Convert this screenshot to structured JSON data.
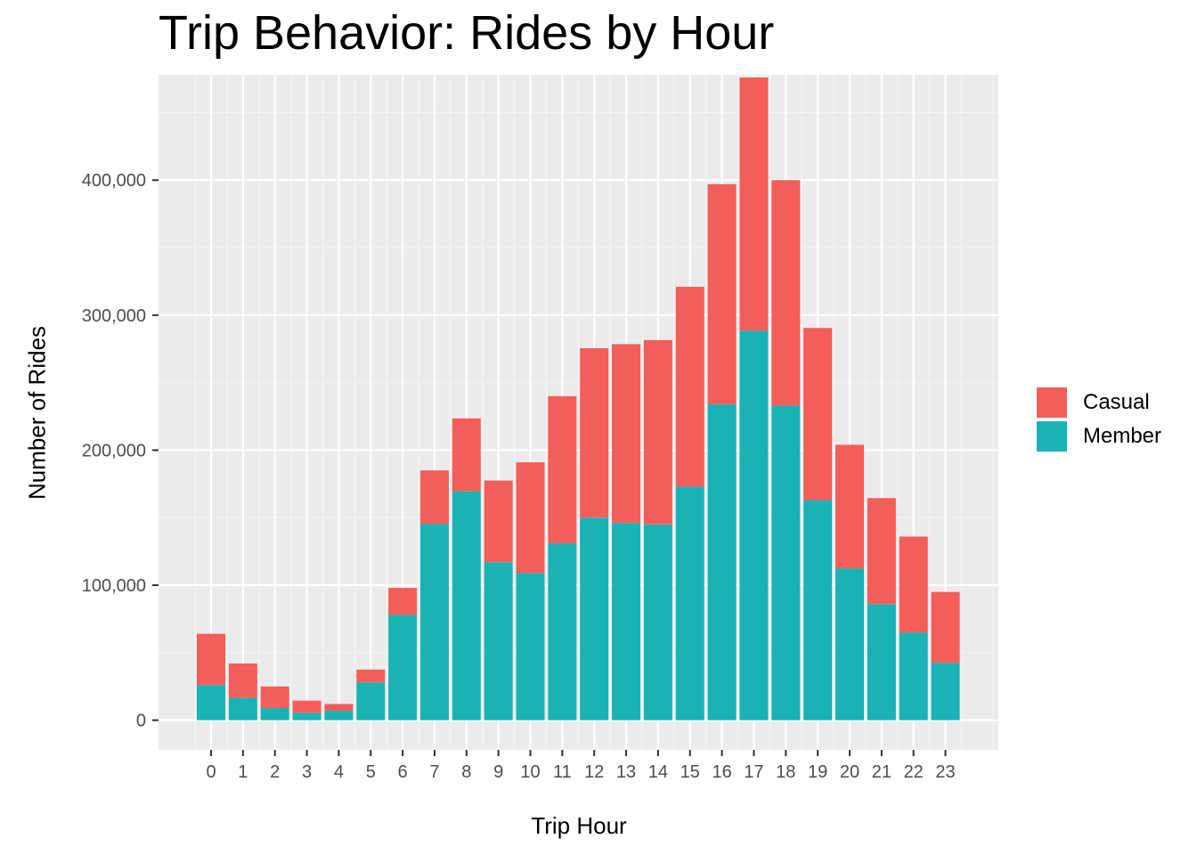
{
  "chart_data": {
    "type": "bar",
    "stacked": true,
    "title": "Trip Behavior: Rides by Hour",
    "xlabel": "Trip Hour",
    "ylabel": "Number of Rides",
    "categories": [
      "0",
      "1",
      "2",
      "3",
      "4",
      "5",
      "6",
      "7",
      "8",
      "9",
      "10",
      "11",
      "12",
      "13",
      "14",
      "15",
      "16",
      "17",
      "18",
      "19",
      "20",
      "21",
      "22",
      "23"
    ],
    "series": [
      {
        "name": "Member",
        "color": "#19b3b6",
        "values": [
          26000,
          16500,
          9000,
          5500,
          7000,
          28000,
          78000,
          145500,
          169500,
          117000,
          109000,
          131000,
          150000,
          146000,
          145000,
          173000,
          234000,
          288500,
          233000,
          163000,
          112500,
          86000,
          65000,
          42500
        ]
      },
      {
        "name": "Casual",
        "color": "#f35e5a",
        "values": [
          38000,
          25500,
          16000,
          9000,
          5000,
          9500,
          20000,
          39500,
          54000,
          60500,
          82000,
          109000,
          125500,
          132500,
          136500,
          148000,
          163000,
          187500,
          167000,
          127500,
          91500,
          78500,
          71000,
          52500
        ]
      }
    ],
    "ylim": [
      -22000,
      478000
    ],
    "yticks": [
      0,
      100000,
      200000,
      300000,
      400000
    ],
    "ytick_labels": [
      "0",
      "100,000",
      "200,000",
      "300,000",
      "400,000"
    ],
    "legend": {
      "position": "right",
      "entries": [
        "Casual",
        "Member"
      ]
    },
    "grid": true
  }
}
